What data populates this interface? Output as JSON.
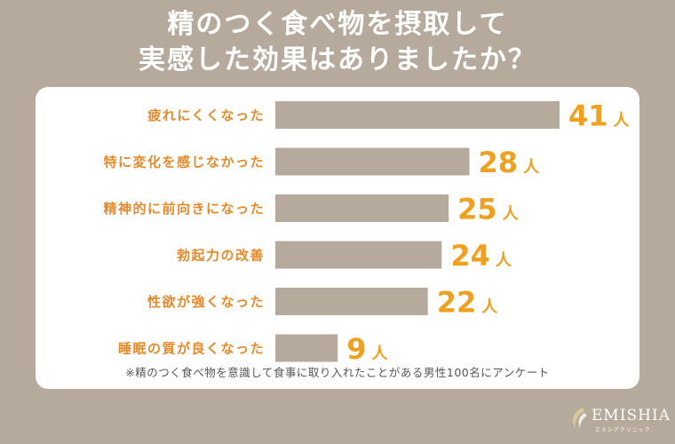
{
  "header": {
    "title_line1": "精のつく食べ物を摂取して",
    "title_line2": "実感した効果はありましたか？"
  },
  "chart_data": {
    "type": "bar",
    "orientation": "horizontal",
    "categories": [
      "疲れにくくなった",
      "特に変化を感じなかった",
      "精神的に前向きになった",
      "勃起力の改善",
      "性欲が強くなった",
      "睡眠の質が良くなった"
    ],
    "values": [
      41,
      28,
      25,
      24,
      22,
      9
    ],
    "unit": "人",
    "colors": {
      "bar": "#b5aa9b",
      "label": "#e5892a",
      "value": "#f0a020"
    }
  },
  "footnote": "※精のつく食べ物を意識して食事に取り入れたことがある男性100名にアンケート",
  "brand": {
    "name": "EMISHIA",
    "sub": "エミシアクリニック"
  }
}
